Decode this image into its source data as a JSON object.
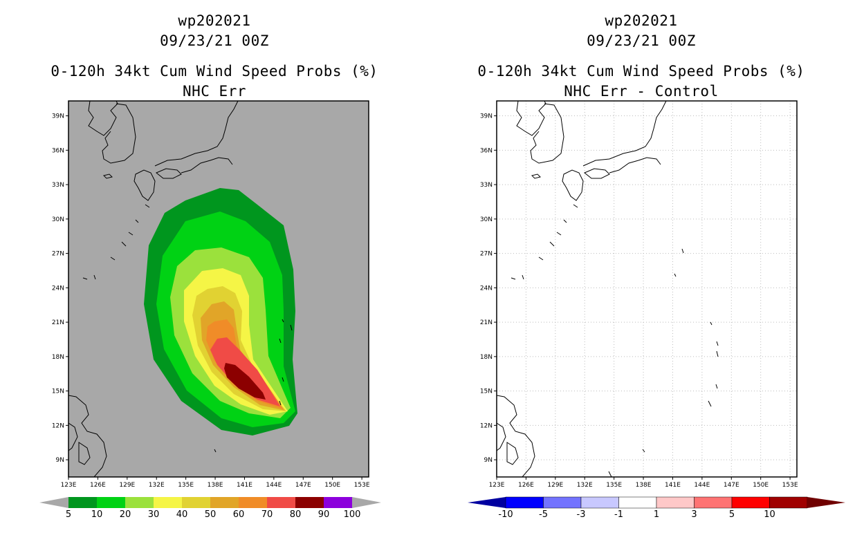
{
  "left_panel": {
    "storm_id": "wp202021",
    "datetime": "09/23/21 00Z",
    "product": "0-120h 34kt Cum Wind Speed Probs (%)",
    "subtitle": "NHC Err",
    "background_color": "#a8a8a8",
    "colorbar": {
      "labels": [
        "5",
        "10",
        "20",
        "30",
        "40",
        "50",
        "60",
        "70",
        "80",
        "90",
        "100"
      ],
      "colors": [
        "#00961e",
        "#00d214",
        "#9be13c",
        "#f5f546",
        "#e1d232",
        "#e1a528",
        "#f08c28",
        "#f04b46",
        "#8c0000",
        "#8c00dc"
      ],
      "end_color": "#a8a8a8"
    }
  },
  "right_panel": {
    "storm_id": "wp202021",
    "datetime": "09/23/21 00Z",
    "product": "0-120h 34kt Cum Wind Speed Probs (%)",
    "subtitle": "NHC Err - Control",
    "background_color": "#ffffff",
    "colorbar": {
      "labels": [
        "-10",
        "-5",
        "-3",
        "-1",
        "1",
        "3",
        "5",
        "10"
      ],
      "colors": [
        "#0000a0",
        "#0000ff",
        "#7373ff",
        "#c8c8ff",
        "#ffffff",
        "#ffc8c8",
        "#ff7373",
        "#ff0000",
        "#a00000"
      ],
      "left_end_color": "#0000a0",
      "right_end_color": "#700000"
    }
  },
  "map": {
    "lat_labels": [
      "39N",
      "36N",
      "33N",
      "30N",
      "27N",
      "24N",
      "21N",
      "18N",
      "15N",
      "12N",
      "9N"
    ],
    "lon_labels": [
      "123E",
      "126E",
      "129E",
      "132E",
      "135E",
      "138E",
      "141E",
      "144E",
      "147E",
      "150E",
      "153E"
    ],
    "lat_range": [
      7.5,
      40.3
    ],
    "lon_range": [
      123,
      153.7
    ],
    "probability_levels": [
      5,
      10,
      20,
      30,
      40,
      50,
      60,
      70,
      80,
      90
    ]
  }
}
